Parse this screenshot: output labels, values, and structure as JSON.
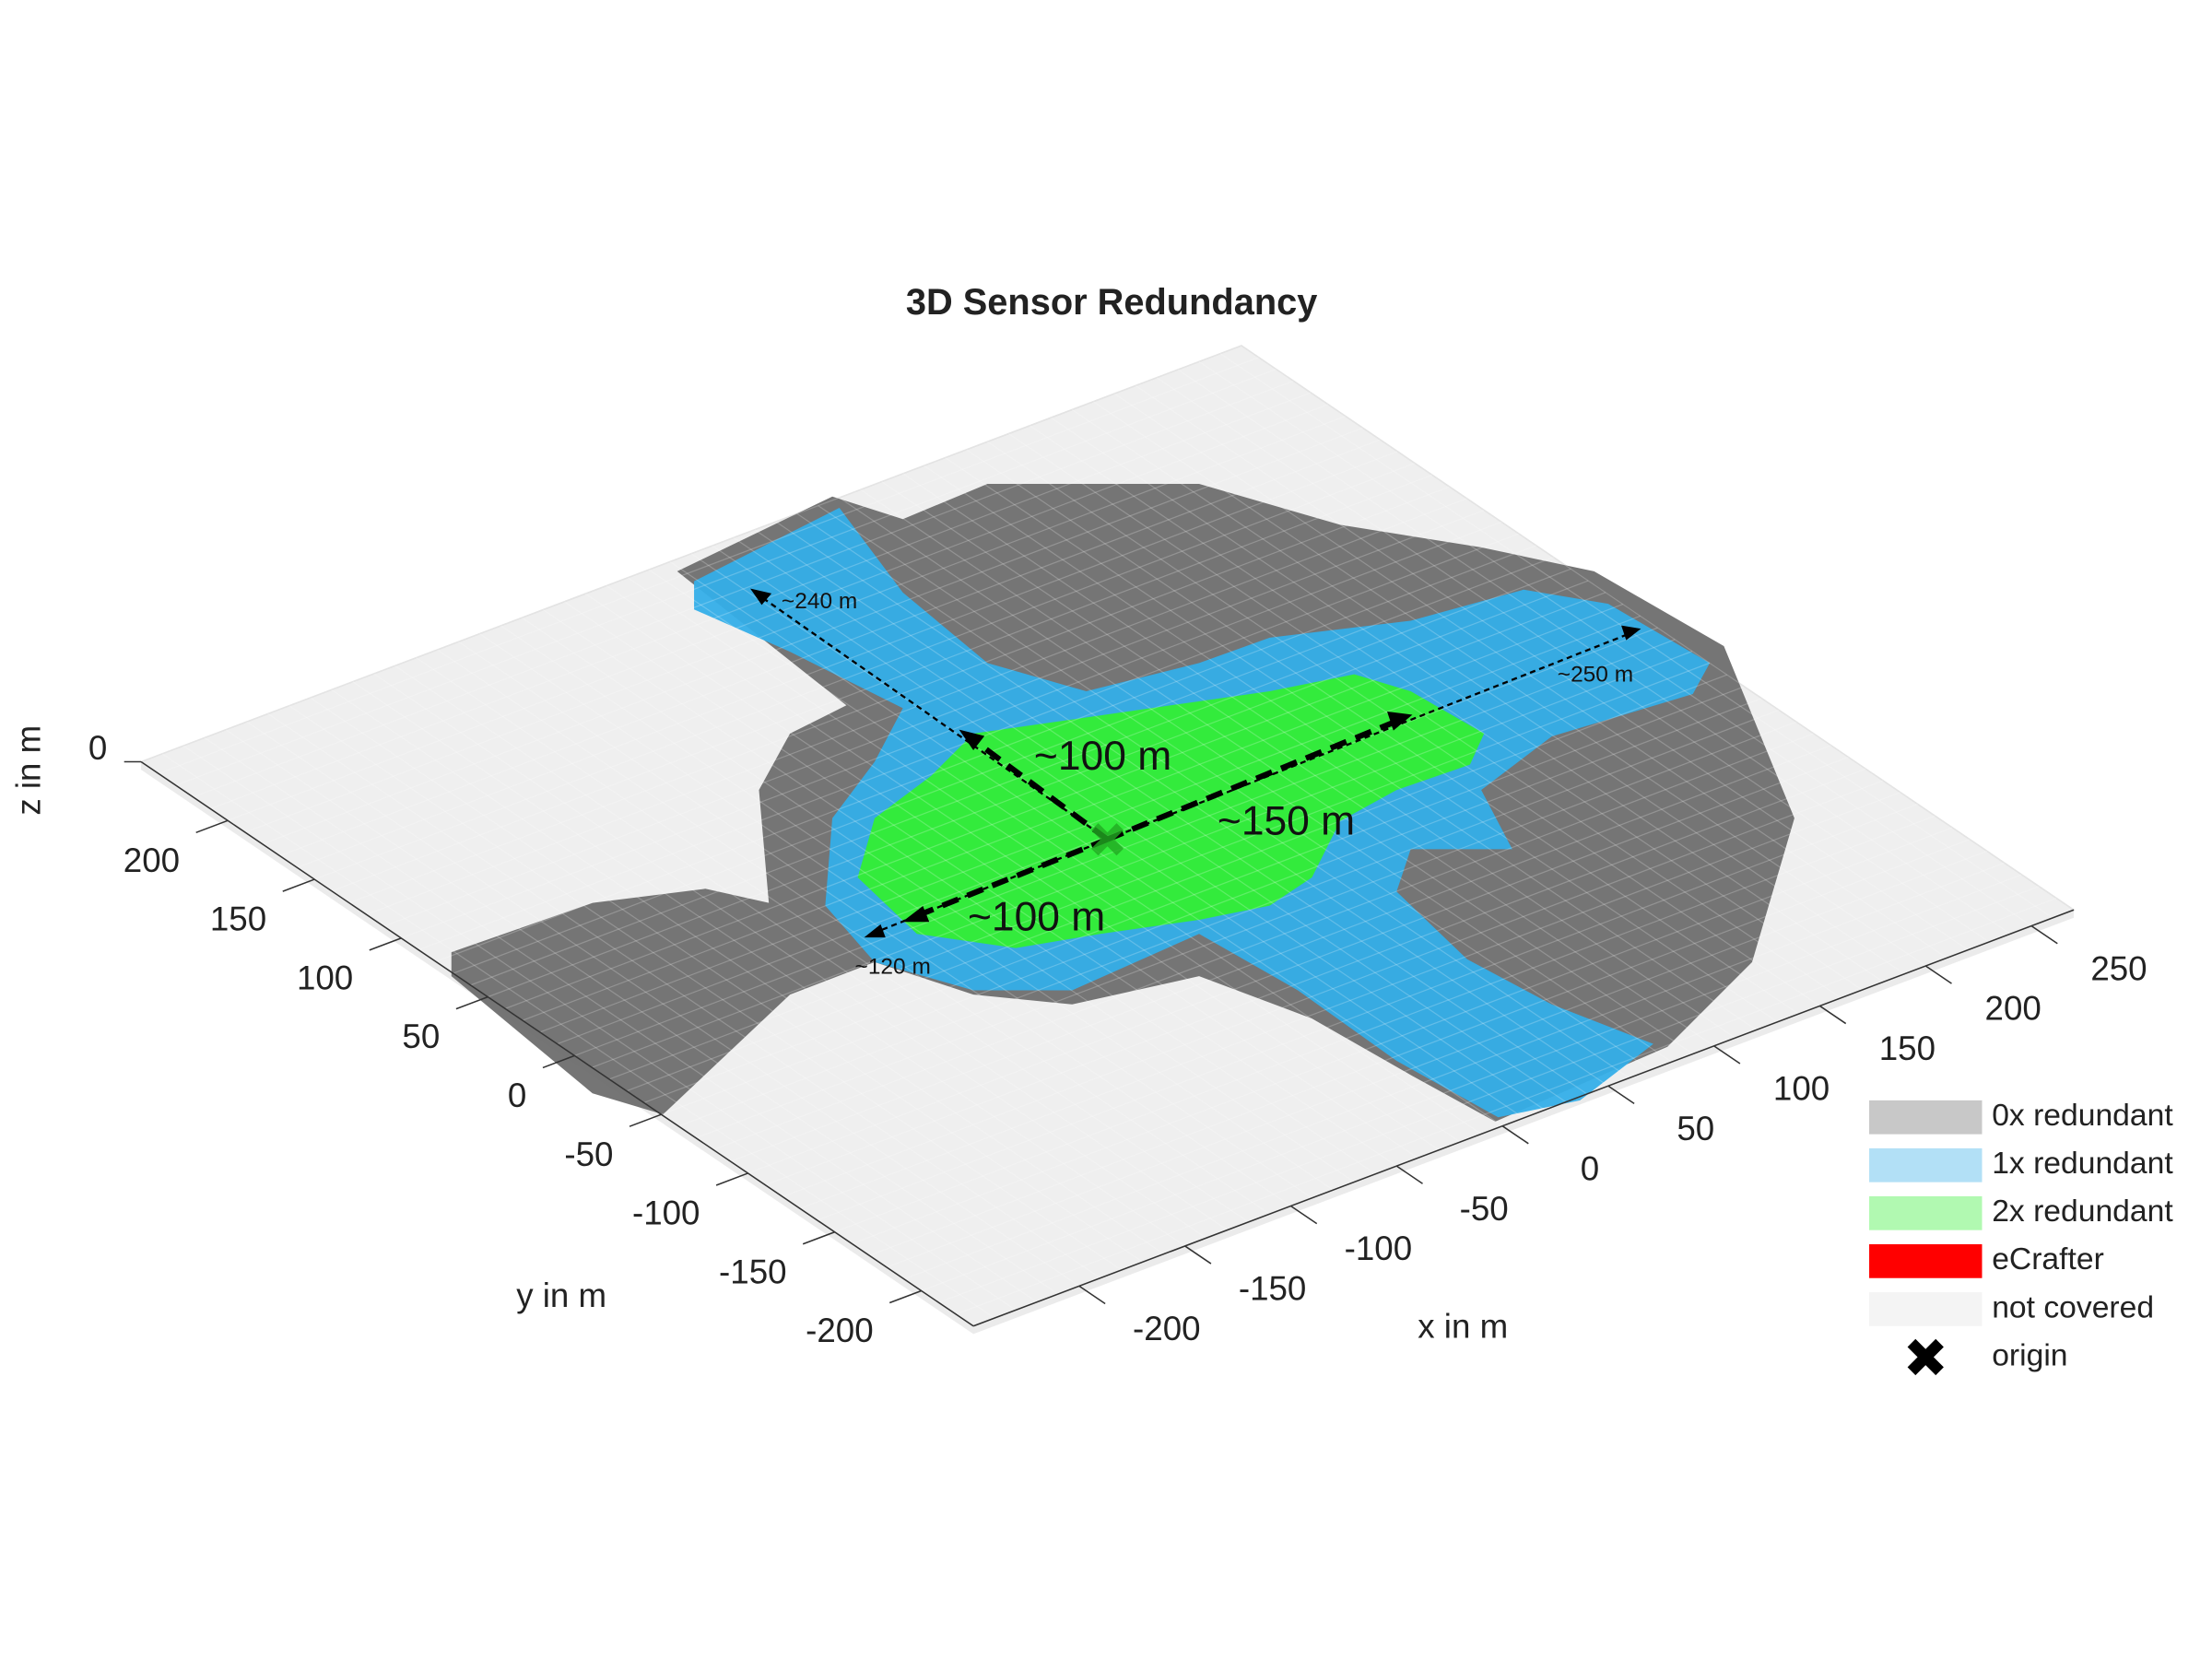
{
  "chart_data": {
    "type": "voxel3d",
    "title": "3D Sensor Redundancy",
    "xlabel": "x in m",
    "ylabel": "y in m",
    "zlabel": "z in m",
    "xlim": [
      -250,
      270
    ],
    "ylim": [
      -230,
      250
    ],
    "zlim": [
      0,
      10
    ],
    "xticks": [
      -200,
      -150,
      -100,
      -50,
      0,
      50,
      100,
      150,
      200,
      250
    ],
    "yticks": [
      -200,
      -150,
      -100,
      -50,
      0,
      50,
      100,
      150,
      200
    ],
    "zticks": [
      0
    ],
    "annotations": [
      "~240 m",
      "~250 m",
      "~100 m",
      "~150 m",
      "~100 m",
      "~120 m"
    ],
    "legend": "lower right",
    "legend_alpha": 0.38,
    "series": [
      {
        "name": "0x redundant",
        "color": "#6e6e6e"
      },
      {
        "name": "1x redundant",
        "color": "#34aee8"
      },
      {
        "name": "2x redundant",
        "color": "#33ee33"
      },
      {
        "name": "eCrafter",
        "color": "#ff0000"
      },
      {
        "name": "not covered",
        "color": "#e2e2e2"
      },
      {
        "name": "origin",
        "color": "#000000",
        "marker": "x"
      }
    ]
  }
}
